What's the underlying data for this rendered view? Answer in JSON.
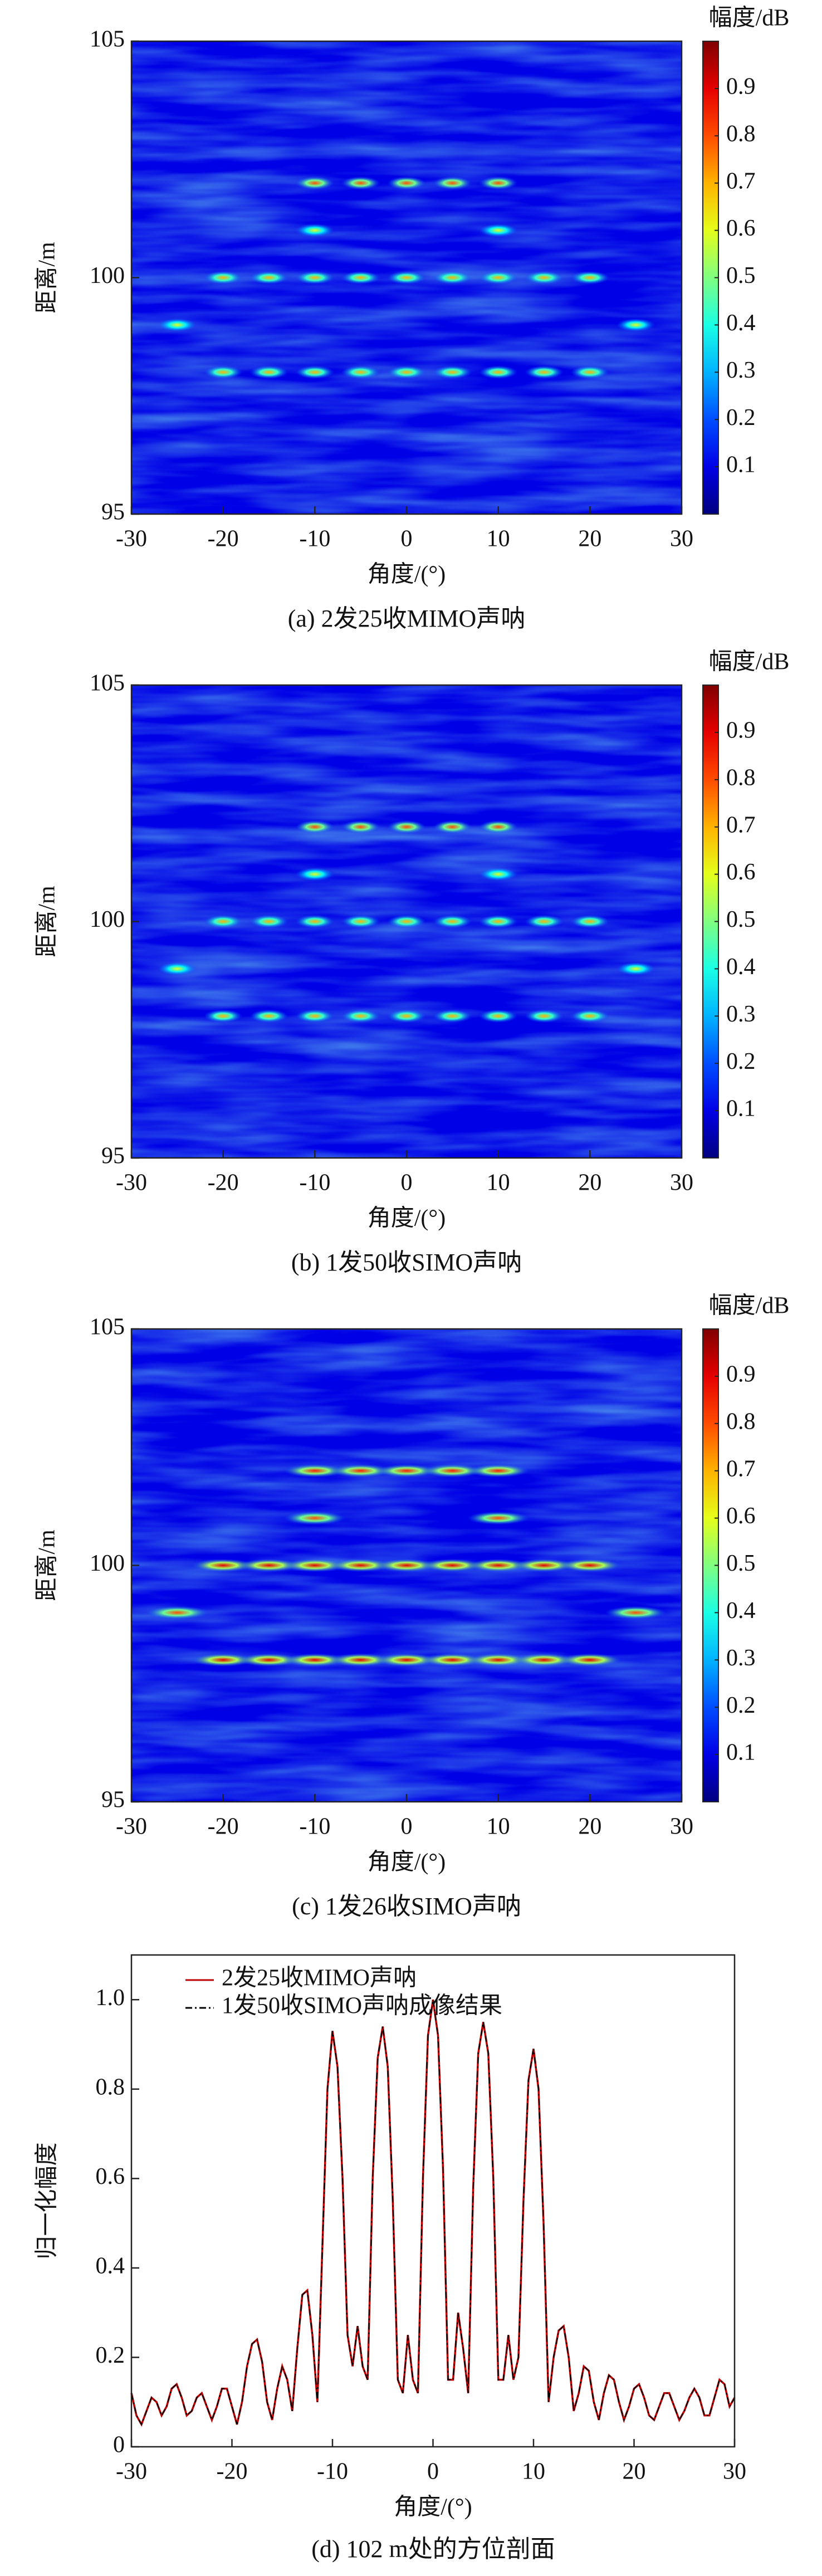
{
  "chart_data": [
    {
      "type": "heatmap",
      "xlabel": "角度/(°)",
      "ylabel": "距离/m",
      "caption": "(a) 2发25收MIMO声呐",
      "colorbar_label": "幅度/dB",
      "colormap": "jet",
      "clim": [
        0,
        1
      ],
      "cticks": [
        0.1,
        0.2,
        0.3,
        0.4,
        0.5,
        0.6,
        0.7,
        0.8,
        0.9
      ],
      "xlim": [
        -30,
        30
      ],
      "xticks": [
        -30,
        -20,
        -10,
        0,
        10,
        20,
        30
      ],
      "ylim": [
        95,
        105
      ],
      "yticks": [
        95,
        100,
        105
      ],
      "x": [
        -10,
        -5,
        0,
        5,
        10,
        -10,
        10,
        -20,
        -15,
        -10,
        -5,
        0,
        5,
        10,
        15,
        20,
        -25,
        25,
        -20,
        -15,
        -10,
        -5,
        0,
        5,
        10,
        15,
        20
      ],
      "y": [
        102,
        102,
        102,
        102,
        102,
        101,
        101,
        100,
        100,
        100,
        100,
        100,
        100,
        100,
        100,
        100,
        99,
        99,
        98,
        98,
        98,
        98,
        98,
        98,
        98,
        98,
        98
      ],
      "values": [
        0.8,
        0.8,
        0.8,
        0.8,
        0.8,
        0.6,
        0.6,
        0.7,
        0.7,
        0.7,
        0.7,
        0.7,
        0.7,
        0.7,
        0.7,
        0.7,
        0.6,
        0.6,
        0.7,
        0.7,
        0.7,
        0.7,
        0.7,
        0.7,
        0.7,
        0.7,
        0.7
      ]
    },
    {
      "type": "heatmap",
      "xlabel": "角度/(°)",
      "ylabel": "距离/m",
      "caption": "(b) 1发50收SIMO声呐",
      "colorbar_label": "幅度/dB",
      "colormap": "jet",
      "clim": [
        0,
        1
      ],
      "cticks": [
        0.1,
        0.2,
        0.3,
        0.4,
        0.5,
        0.6,
        0.7,
        0.8,
        0.9
      ],
      "xlim": [
        -30,
        30
      ],
      "xticks": [
        -30,
        -20,
        -10,
        0,
        10,
        20,
        30
      ],
      "ylim": [
        95,
        105
      ],
      "yticks": [
        95,
        100,
        105
      ],
      "x": [
        -10,
        -5,
        0,
        5,
        10,
        -10,
        10,
        -20,
        -15,
        -10,
        -5,
        0,
        5,
        10,
        15,
        20,
        -25,
        25,
        -20,
        -15,
        -10,
        -5,
        0,
        5,
        10,
        15,
        20
      ],
      "y": [
        102,
        102,
        102,
        102,
        102,
        101,
        101,
        100,
        100,
        100,
        100,
        100,
        100,
        100,
        100,
        100,
        99,
        99,
        98,
        98,
        98,
        98,
        98,
        98,
        98,
        98,
        98
      ],
      "values": [
        0.8,
        0.8,
        0.8,
        0.8,
        0.8,
        0.6,
        0.6,
        0.7,
        0.7,
        0.7,
        0.7,
        0.7,
        0.7,
        0.7,
        0.7,
        0.7,
        0.6,
        0.6,
        0.7,
        0.7,
        0.7,
        0.7,
        0.7,
        0.7,
        0.7,
        0.7,
        0.7
      ]
    },
    {
      "type": "heatmap",
      "xlabel": "角度/(°)",
      "ylabel": "距离/m",
      "caption": "(c) 1发26收SIMO声呐",
      "colorbar_label": "幅度/dB",
      "colormap": "jet",
      "clim": [
        0,
        1
      ],
      "cticks": [
        0.1,
        0.2,
        0.3,
        0.4,
        0.5,
        0.6,
        0.7,
        0.8,
        0.9
      ],
      "xlim": [
        -30,
        30
      ],
      "xticks": [
        -30,
        -20,
        -10,
        0,
        10,
        20,
        30
      ],
      "ylim": [
        95,
        105
      ],
      "yticks": [
        95,
        100,
        105
      ],
      "x": [
        -10,
        -5,
        0,
        5,
        10,
        -10,
        10,
        -20,
        -15,
        -10,
        -5,
        0,
        5,
        10,
        15,
        20,
        -25,
        25,
        -20,
        -15,
        -10,
        -5,
        0,
        5,
        10,
        15,
        20
      ],
      "y": [
        102,
        102,
        102,
        102,
        102,
        101,
        101,
        100,
        100,
        100,
        100,
        100,
        100,
        100,
        100,
        100,
        99,
        99,
        98,
        98,
        98,
        98,
        98,
        98,
        98,
        98,
        98
      ],
      "values": [
        0.85,
        0.85,
        0.85,
        0.85,
        0.85,
        0.8,
        0.8,
        0.9,
        0.9,
        0.9,
        0.9,
        0.9,
        0.9,
        0.9,
        0.9,
        0.9,
        0.8,
        0.8,
        0.9,
        0.9,
        0.9,
        0.9,
        0.9,
        0.9,
        0.9,
        0.9,
        0.9
      ]
    },
    {
      "type": "line",
      "xlabel": "角度/(°)",
      "ylabel": "归一化幅度",
      "caption": "(d) 102 m处的方位剖面",
      "xlim": [
        -30,
        30
      ],
      "xticks": [
        -30,
        -20,
        -10,
        0,
        10,
        20,
        30
      ],
      "ylim": [
        0,
        1.1
      ],
      "yticks": [
        0,
        0.2,
        0.4,
        0.6,
        0.8,
        {
          "value": 1,
          "label": "1.0"
        }
      ],
      "x": [
        -30,
        -29.5,
        -29,
        -28.5,
        -28,
        -27.5,
        -27,
        -26.5,
        -26,
        -25.5,
        -25,
        -24.5,
        -24,
        -23.5,
        -23,
        -22.5,
        -22,
        -21.5,
        -21,
        -20.5,
        -20,
        -19.5,
        -19,
        -18.5,
        -18,
        -17.5,
        -17,
        -16.5,
        -16,
        -15.5,
        -15,
        -14.5,
        -14,
        -13.5,
        -13,
        -12.5,
        -12,
        -11.5,
        -11,
        -10.5,
        -10,
        -9.5,
        -9,
        -8.5,
        -8,
        -7.5,
        -7,
        -6.5,
        -6,
        -5.5,
        -5,
        -4.5,
        -4,
        -3.5,
        -3,
        -2.5,
        -2,
        -1.5,
        -1,
        -0.5,
        0,
        0.5,
        1,
        1.5,
        2,
        2.5,
        3,
        3.5,
        4,
        4.5,
        5,
        5.5,
        6,
        6.5,
        7,
        7.5,
        8,
        8.5,
        9,
        9.5,
        10,
        10.5,
        11,
        11.5,
        12,
        12.5,
        13,
        13.5,
        14,
        14.5,
        15,
        15.5,
        16,
        16.5,
        17,
        17.5,
        18,
        18.5,
        19,
        19.5,
        20,
        20.5,
        21,
        21.5,
        22,
        22.5,
        23,
        23.5,
        24,
        24.5,
        25,
        25.5,
        26,
        26.5,
        27,
        27.5,
        28,
        28.5,
        29,
        29.5,
        30
      ],
      "series": [
        {
          "name": "2发25收MIMO声呐",
          "color": "#c00000",
          "dash": "solid",
          "values": [
            0.12,
            0.07,
            0.05,
            0.08,
            0.11,
            0.1,
            0.07,
            0.09,
            0.13,
            0.14,
            0.11,
            0.07,
            0.08,
            0.11,
            0.12,
            0.09,
            0.06,
            0.09,
            0.13,
            0.13,
            0.09,
            0.05,
            0.1,
            0.18,
            0.23,
            0.24,
            0.19,
            0.1,
            0.06,
            0.13,
            0.18,
            0.15,
            0.08,
            0.22,
            0.34,
            0.35,
            0.25,
            0.1,
            0.45,
            0.8,
            0.93,
            0.85,
            0.6,
            0.25,
            0.18,
            0.27,
            0.18,
            0.15,
            0.6,
            0.87,
            0.94,
            0.85,
            0.55,
            0.15,
            0.12,
            0.25,
            0.15,
            0.12,
            0.6,
            0.92,
            1.0,
            0.92,
            0.62,
            0.15,
            0.15,
            0.3,
            0.22,
            0.12,
            0.58,
            0.88,
            0.95,
            0.88,
            0.6,
            0.15,
            0.15,
            0.25,
            0.15,
            0.2,
            0.55,
            0.82,
            0.89,
            0.8,
            0.5,
            0.1,
            0.2,
            0.26,
            0.27,
            0.2,
            0.08,
            0.12,
            0.18,
            0.17,
            0.1,
            0.06,
            0.12,
            0.16,
            0.15,
            0.1,
            0.06,
            0.09,
            0.13,
            0.14,
            0.11,
            0.07,
            0.06,
            0.09,
            0.12,
            0.12,
            0.09,
            0.06,
            0.08,
            0.11,
            0.13,
            0.11,
            0.07,
            0.07,
            0.11,
            0.15,
            0.14,
            0.09,
            0.11
          ]
        },
        {
          "name": "1发50收SIMO声呐成像结果",
          "color": "#000000",
          "dash": "dashdot",
          "values": [
            0.12,
            0.07,
            0.05,
            0.08,
            0.11,
            0.1,
            0.07,
            0.09,
            0.13,
            0.14,
            0.11,
            0.07,
            0.08,
            0.11,
            0.12,
            0.09,
            0.06,
            0.09,
            0.13,
            0.13,
            0.09,
            0.05,
            0.1,
            0.18,
            0.23,
            0.24,
            0.19,
            0.1,
            0.06,
            0.13,
            0.18,
            0.15,
            0.08,
            0.22,
            0.34,
            0.35,
            0.25,
            0.1,
            0.45,
            0.8,
            0.93,
            0.85,
            0.6,
            0.25,
            0.18,
            0.27,
            0.18,
            0.15,
            0.6,
            0.87,
            0.94,
            0.85,
            0.55,
            0.15,
            0.12,
            0.25,
            0.15,
            0.12,
            0.6,
            0.92,
            1.0,
            0.92,
            0.62,
            0.15,
            0.15,
            0.3,
            0.22,
            0.12,
            0.58,
            0.88,
            0.95,
            0.88,
            0.6,
            0.15,
            0.15,
            0.25,
            0.15,
            0.2,
            0.55,
            0.82,
            0.89,
            0.8,
            0.5,
            0.1,
            0.2,
            0.26,
            0.27,
            0.2,
            0.08,
            0.12,
            0.18,
            0.17,
            0.1,
            0.06,
            0.12,
            0.16,
            0.15,
            0.1,
            0.06,
            0.09,
            0.13,
            0.14,
            0.11,
            0.07,
            0.06,
            0.09,
            0.12,
            0.12,
            0.09,
            0.06,
            0.08,
            0.11,
            0.13,
            0.11,
            0.07,
            0.07,
            0.11,
            0.15,
            0.14,
            0.09,
            0.11
          ]
        }
      ]
    }
  ]
}
